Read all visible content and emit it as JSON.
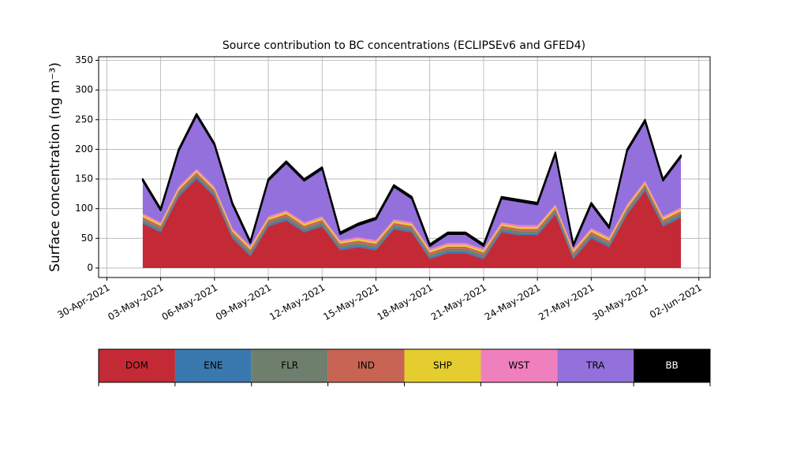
{
  "chart_data": {
    "type": "stacked_area",
    "title": "Source contribution to BC concentrations (ECLIPSEv6 and GFED4)",
    "y_label": "Surface concentration (ng m⁻³)",
    "x": [
      "2021-05-02",
      "2021-05-03",
      "2021-05-04",
      "2021-05-05",
      "2021-05-06",
      "2021-05-07",
      "2021-05-08",
      "2021-05-09",
      "2021-05-10",
      "2021-05-11",
      "2021-05-12",
      "2021-05-13",
      "2021-05-14",
      "2021-05-15",
      "2021-05-16",
      "2021-05-17",
      "2021-05-18",
      "2021-05-19",
      "2021-05-20",
      "2021-05-21",
      "2021-05-22",
      "2021-05-23",
      "2021-05-24",
      "2021-05-25",
      "2021-05-26",
      "2021-05-27",
      "2021-05-28",
      "2021-05-29",
      "2021-05-30",
      "2021-05-31",
      "2021-06-01"
    ],
    "series": [
      {
        "name": "DOM",
        "color": "#c42a35",
        "values": [
          75,
          60,
          120,
          150,
          120,
          50,
          20,
          70,
          80,
          60,
          70,
          30,
          35,
          30,
          65,
          60,
          15,
          25,
          25,
          15,
          60,
          55,
          55,
          90,
          15,
          50,
          35,
          90,
          130,
          70,
          85
        ]
      },
      {
        "name": "ENE",
        "color": "#3a78b0",
        "values": [
          3,
          3,
          3,
          3,
          3,
          3,
          3,
          3,
          3,
          3,
          3,
          3,
          3,
          3,
          3,
          3,
          3,
          3,
          3,
          3,
          3,
          3,
          3,
          3,
          3,
          3,
          3,
          3,
          3,
          3,
          3
        ]
      },
      {
        "name": "FLR",
        "color": "#6e7f6e",
        "values": [
          4,
          4,
          4,
          4,
          4,
          4,
          4,
          4,
          4,
          4,
          4,
          4,
          4,
          4,
          4,
          4,
          4,
          4,
          4,
          4,
          4,
          4,
          4,
          4,
          4,
          4,
          4,
          4,
          4,
          4,
          4
        ]
      },
      {
        "name": "IND",
        "color": "#c86454",
        "values": [
          4,
          4,
          4,
          4,
          4,
          4,
          4,
          4,
          4,
          4,
          4,
          4,
          4,
          4,
          4,
          4,
          4,
          4,
          4,
          4,
          4,
          4,
          4,
          4,
          4,
          4,
          4,
          4,
          4,
          4,
          4
        ]
      },
      {
        "name": "SHP",
        "color": "#e5cd2f",
        "values": [
          3,
          3,
          3,
          3,
          3,
          3,
          3,
          3,
          3,
          3,
          3,
          3,
          3,
          3,
          3,
          3,
          3,
          3,
          3,
          3,
          3,
          3,
          3,
          3,
          3,
          3,
          3,
          3,
          3,
          3,
          3
        ]
      },
      {
        "name": "WST",
        "color": "#f080bd",
        "values": [
          3,
          3,
          3,
          3,
          3,
          3,
          3,
          3,
          3,
          3,
          3,
          3,
          3,
          3,
          3,
          3,
          3,
          3,
          3,
          3,
          3,
          3,
          3,
          3,
          3,
          3,
          3,
          3,
          3,
          3,
          3
        ]
      },
      {
        "name": "TRA",
        "color": "#9370db",
        "values": [
          55,
          20,
          60,
          90,
          70,
          40,
          5,
          60,
          80,
          70,
          80,
          10,
          20,
          35,
          55,
          40,
          5,
          15,
          15,
          5,
          40,
          40,
          35,
          85,
          5,
          40,
          15,
          90,
          100,
          60,
          85
        ]
      },
      {
        "name": "BB",
        "color": "#000000",
        "values": [
          3,
          3,
          3,
          3,
          3,
          3,
          3,
          3,
          3,
          3,
          3,
          3,
          3,
          3,
          3,
          3,
          3,
          3,
          3,
          3,
          3,
          3,
          3,
          3,
          3,
          3,
          3,
          3,
          3,
          3,
          3
        ]
      }
    ],
    "xlim": [
      "2021-04-29T13:00:00Z",
      "2021-06-02T15:00:00Z"
    ],
    "xticks": [
      {
        "value": "2021-04-30",
        "label": "30-Apr-2021"
      },
      {
        "value": "2021-05-03",
        "label": "03-May-2021"
      },
      {
        "value": "2021-05-06",
        "label": "06-May-2021"
      },
      {
        "value": "2021-05-09",
        "label": "09-May-2021"
      },
      {
        "value": "2021-05-12",
        "label": "12-May-2021"
      },
      {
        "value": "2021-05-15",
        "label": "15-May-2021"
      },
      {
        "value": "2021-05-18",
        "label": "18-May-2021"
      },
      {
        "value": "2021-05-21",
        "label": "21-May-2021"
      },
      {
        "value": "2021-05-24",
        "label": "24-May-2021"
      },
      {
        "value": "2021-05-27",
        "label": "27-May-2021"
      },
      {
        "value": "2021-05-30",
        "label": "30-May-2021"
      },
      {
        "value": "2021-06-02",
        "label": "02-Jun-2021"
      }
    ],
    "ylim": [
      -16,
      356
    ],
    "yticks": [
      0,
      50,
      100,
      150,
      200,
      250,
      300,
      350
    ],
    "grid": true
  }
}
